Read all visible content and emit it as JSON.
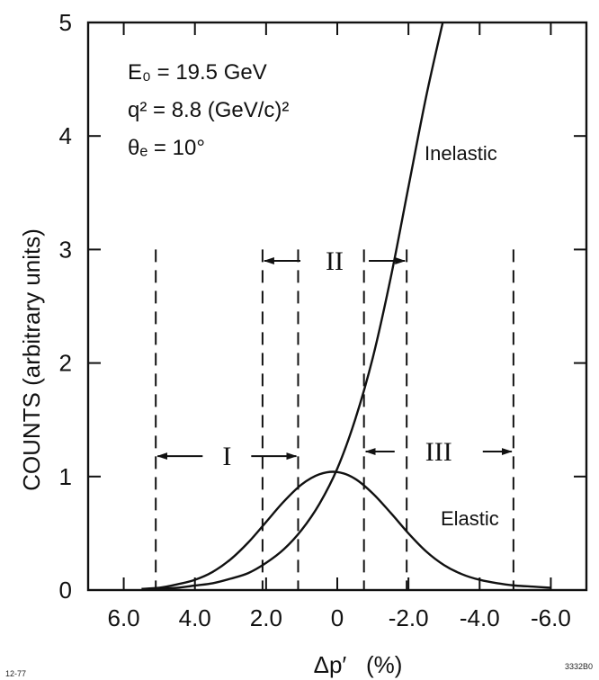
{
  "chart_data": {
    "type": "line",
    "xlabel": "Δp′   (%)",
    "ylabel": "COUNTS  (arbitrary units)",
    "xlim": [
      7.0,
      -7.0
    ],
    "ylim": [
      0,
      5
    ],
    "xticks": [
      6.0,
      4.0,
      2.0,
      0,
      -2.0,
      -4.0,
      -6.0
    ],
    "xtick_labels": [
      "6.0",
      "4.0",
      "2.0",
      "0",
      "-2.0",
      "-4.0",
      "-6.0"
    ],
    "yticks": [
      0,
      1,
      2,
      3,
      4,
      5
    ],
    "ytick_labels": [
      "0",
      "1",
      "2",
      "3",
      "4",
      "5"
    ],
    "series": [
      {
        "name": "Elastic",
        "x": [
          5.5,
          5.0,
          4.5,
          4.0,
          3.5,
          3.0,
          2.5,
          2.0,
          1.5,
          1.0,
          0.5,
          0.0,
          -0.5,
          -1.0,
          -1.5,
          -2.0,
          -2.5,
          -3.0,
          -3.5,
          -4.0,
          -4.5,
          -5.0,
          -5.5,
          -6.0
        ],
        "y": [
          0.01,
          0.02,
          0.05,
          0.09,
          0.16,
          0.27,
          0.42,
          0.6,
          0.78,
          0.93,
          1.02,
          1.04,
          0.98,
          0.85,
          0.68,
          0.5,
          0.34,
          0.22,
          0.14,
          0.09,
          0.06,
          0.04,
          0.03,
          0.02
        ]
      },
      {
        "name": "Inelastic",
        "x": [
          5.5,
          5.0,
          4.5,
          4.0,
          3.5,
          3.0,
          2.5,
          2.0,
          1.5,
          1.0,
          0.5,
          0.0,
          -0.5,
          -1.0,
          -1.5,
          -2.0,
          -2.5,
          -3.0
        ],
        "y": [
          0.0,
          0.01,
          0.02,
          0.04,
          0.06,
          0.1,
          0.15,
          0.24,
          0.36,
          0.53,
          0.76,
          1.07,
          1.5,
          2.05,
          2.75,
          3.55,
          4.35,
          5.05
        ]
      }
    ],
    "vlines": [
      5.1,
      2.1,
      1.1,
      -0.75,
      -1.95,
      -4.95
    ],
    "regions": [
      {
        "label": "I",
        "from": 5.1,
        "to": 1.1,
        "y": 1.18
      },
      {
        "label": "II",
        "from": 2.1,
        "to": -1.95,
        "y": 2.9
      },
      {
        "label": "III",
        "from": -0.75,
        "to": -4.95,
        "y": 1.22
      }
    ],
    "curve_labels": {
      "elastic": "Elastic",
      "inelastic": "Inelastic"
    },
    "params": {
      "line1": "E₀ = 19.5  GeV",
      "line2": "q² =  8.8 (GeV/c)²",
      "line3": "θₑ = 10°"
    },
    "footnote_left": "12-77",
    "footnote_right": "3332B0"
  }
}
